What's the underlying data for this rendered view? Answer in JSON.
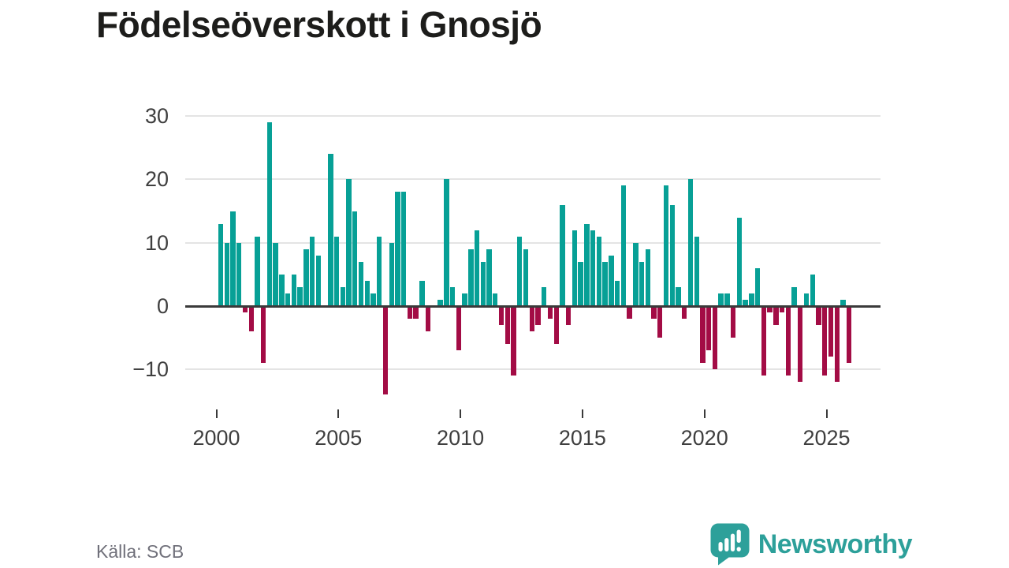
{
  "title": "Födelseöverskott i Gnosjö",
  "source_note": "Källa: SCB",
  "brand": {
    "name": "Newsworthy"
  },
  "colors": {
    "positive_bar": "#07a096",
    "negative_bar": "#a30c45",
    "grid_line": "#e4e4e4",
    "zero_line": "#3a3a3a",
    "axis_text": "#3f3f3f",
    "title_text": "#1d1d1b",
    "source_text": "#70707a",
    "brand_teal": "#2da09a",
    "background": "#ffffff"
  },
  "chart_data": {
    "type": "bar",
    "title": "Födelseöverskott i Gnosjö",
    "grid": "horizontal",
    "legend": "none",
    "x_axis": {
      "tick_labels": [
        "2000",
        "2005",
        "2010",
        "2015",
        "2020",
        "2025"
      ]
    },
    "y_axis": {
      "tick_labels": [
        "30",
        "20",
        "10",
        "0",
        "−10"
      ],
      "tick_values": [
        30,
        20,
        10,
        0,
        -10
      ],
      "gridline_values": [
        30,
        20,
        10,
        -10
      ]
    },
    "ylim": [
      -15,
      31
    ],
    "start_year": 2000,
    "points_per_year": 4,
    "series": [
      {
        "name": "Födelseöverskott",
        "values": [
          13,
          10,
          15,
          10,
          -1,
          -4,
          11,
          -9,
          29,
          10,
          5,
          2,
          5,
          3,
          9,
          11,
          8,
          0,
          24,
          11,
          3,
          20,
          15,
          7,
          4,
          2,
          11,
          -14,
          10,
          18,
          18,
          -2,
          -2,
          4,
          -4,
          0,
          1,
          20,
          3,
          -7,
          2,
          9,
          12,
          7,
          9,
          2,
          -3,
          -6,
          -11,
          11,
          9,
          -4,
          -3,
          3,
          -2,
          -6,
          16,
          -3,
          12,
          7,
          13,
          12,
          11,
          7,
          8,
          4,
          19,
          -2,
          10,
          7,
          9,
          -2,
          -5,
          19,
          16,
          3,
          -2,
          20,
          11,
          -9,
          -7,
          -10,
          2,
          2,
          -5,
          14,
          1,
          2,
          6,
          -11,
          -1,
          -3,
          -1,
          -11,
          3,
          -12,
          2,
          5,
          -3,
          -11,
          -8,
          -12,
          1,
          -9
        ]
      }
    ]
  }
}
